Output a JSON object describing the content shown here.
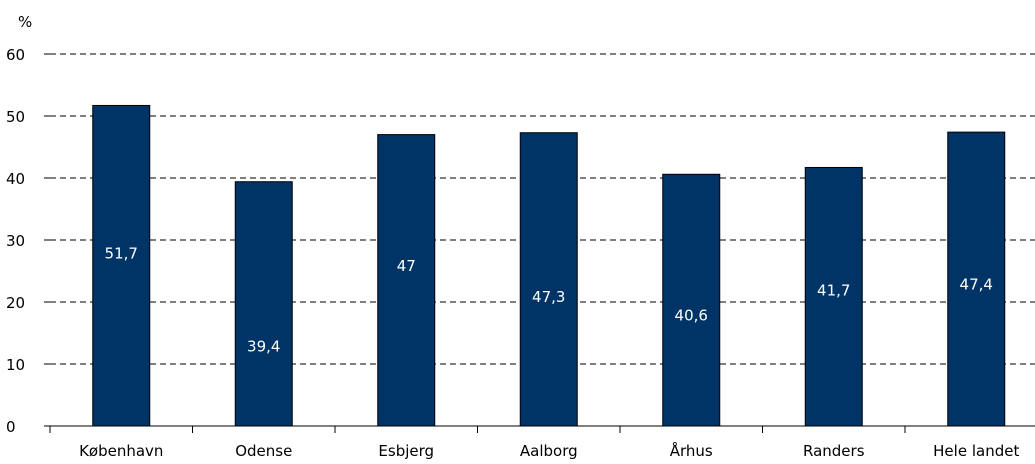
{
  "chart_data": {
    "type": "bar",
    "ylabel": "%",
    "ylim": [
      0,
      60
    ],
    "yticks": [
      0,
      10,
      20,
      30,
      40,
      50,
      60
    ],
    "grid": true,
    "categories": [
      "København",
      "Odense",
      "Esbjerg",
      "Aalborg",
      "Århus",
      "Randers",
      "Hele landet"
    ],
    "values": [
      51.7,
      39.4,
      47,
      47.3,
      40.6,
      41.7,
      47.4
    ],
    "value_labels": [
      "51,7",
      "39,4",
      "47",
      "47,3",
      "40,6",
      "41,7",
      "47,4"
    ],
    "value_label_positions": [
      28,
      13,
      26,
      21,
      18,
      22,
      23
    ],
    "bar_color": "#003366"
  }
}
